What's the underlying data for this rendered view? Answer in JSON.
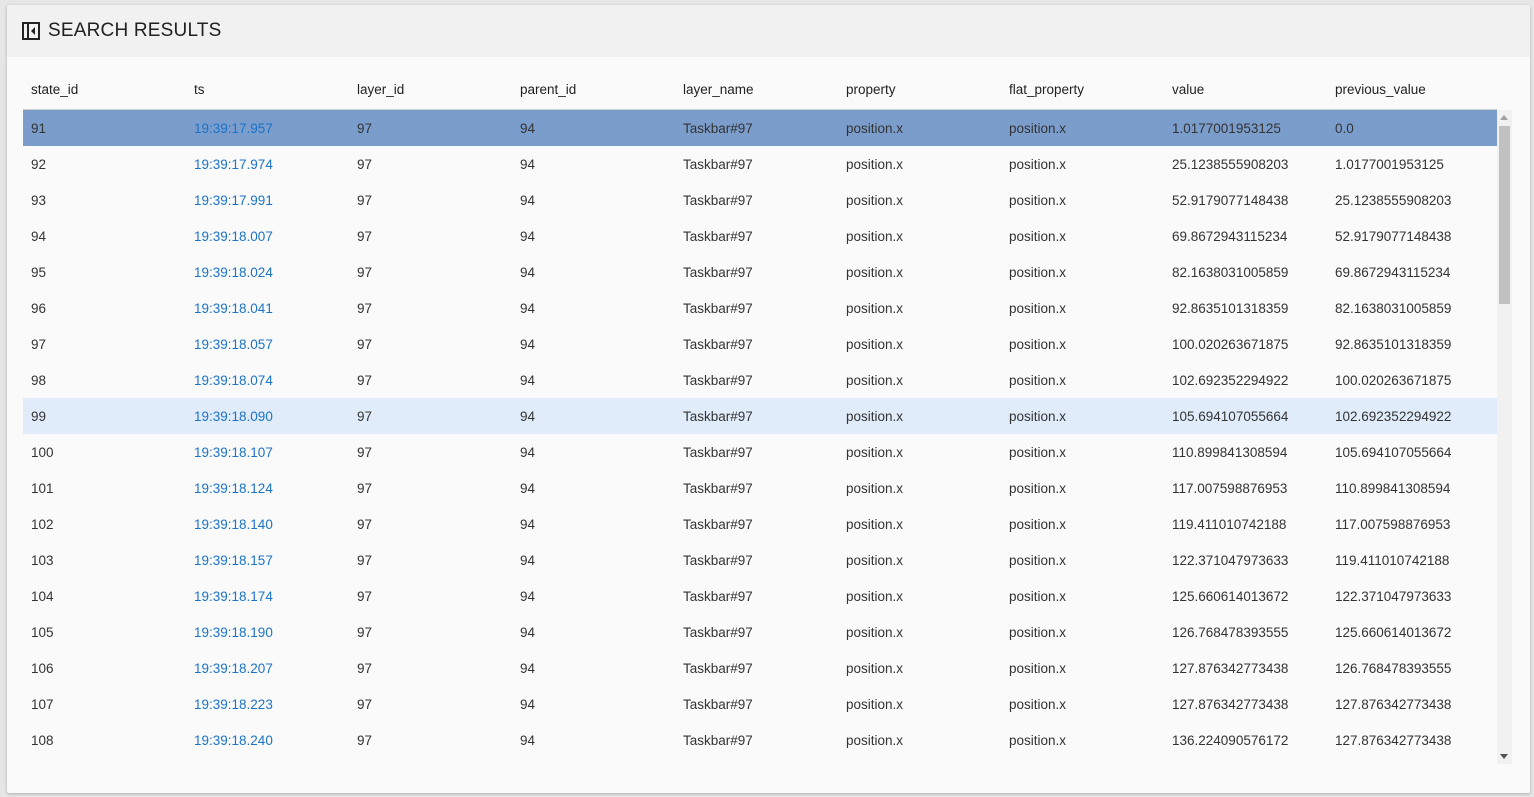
{
  "header": {
    "title": "SEARCH RESULTS",
    "icon": "collapse-panel-icon"
  },
  "colors": {
    "selected_row": "#7b9dcc",
    "hover_row": "#e1ecfb",
    "link": "#1a73c8"
  },
  "table": {
    "columns": [
      "state_id",
      "ts",
      "layer_id",
      "parent_id",
      "layer_name",
      "property",
      "flat_property",
      "value",
      "previous_value"
    ],
    "selected_index": 0,
    "hover_index": 8,
    "rows": [
      [
        "91",
        "19:39:17.957",
        "97",
        "94",
        "Taskbar#97",
        "position.x",
        "position.x",
        "1.0177001953125",
        "0.0"
      ],
      [
        "92",
        "19:39:17.974",
        "97",
        "94",
        "Taskbar#97",
        "position.x",
        "position.x",
        "25.1238555908203",
        "1.0177001953125"
      ],
      [
        "93",
        "19:39:17.991",
        "97",
        "94",
        "Taskbar#97",
        "position.x",
        "position.x",
        "52.9179077148438",
        "25.1238555908203"
      ],
      [
        "94",
        "19:39:18.007",
        "97",
        "94",
        "Taskbar#97",
        "position.x",
        "position.x",
        "69.8672943115234",
        "52.9179077148438"
      ],
      [
        "95",
        "19:39:18.024",
        "97",
        "94",
        "Taskbar#97",
        "position.x",
        "position.x",
        "82.1638031005859",
        "69.8672943115234"
      ],
      [
        "96",
        "19:39:18.041",
        "97",
        "94",
        "Taskbar#97",
        "position.x",
        "position.x",
        "92.8635101318359",
        "82.1638031005859"
      ],
      [
        "97",
        "19:39:18.057",
        "97",
        "94",
        "Taskbar#97",
        "position.x",
        "position.x",
        "100.020263671875",
        "92.8635101318359"
      ],
      [
        "98",
        "19:39:18.074",
        "97",
        "94",
        "Taskbar#97",
        "position.x",
        "position.x",
        "102.692352294922",
        "100.020263671875"
      ],
      [
        "99",
        "19:39:18.090",
        "97",
        "94",
        "Taskbar#97",
        "position.x",
        "position.x",
        "105.694107055664",
        "102.692352294922"
      ],
      [
        "100",
        "19:39:18.107",
        "97",
        "94",
        "Taskbar#97",
        "position.x",
        "position.x",
        "110.899841308594",
        "105.694107055664"
      ],
      [
        "101",
        "19:39:18.124",
        "97",
        "94",
        "Taskbar#97",
        "position.x",
        "position.x",
        "117.007598876953",
        "110.899841308594"
      ],
      [
        "102",
        "19:39:18.140",
        "97",
        "94",
        "Taskbar#97",
        "position.x",
        "position.x",
        "119.411010742188",
        "117.007598876953"
      ],
      [
        "103",
        "19:39:18.157",
        "97",
        "94",
        "Taskbar#97",
        "position.x",
        "position.x",
        "122.371047973633",
        "119.411010742188"
      ],
      [
        "104",
        "19:39:18.174",
        "97",
        "94",
        "Taskbar#97",
        "position.x",
        "position.x",
        "125.660614013672",
        "122.371047973633"
      ],
      [
        "105",
        "19:39:18.190",
        "97",
        "94",
        "Taskbar#97",
        "position.x",
        "position.x",
        "126.768478393555",
        "125.660614013672"
      ],
      [
        "106",
        "19:39:18.207",
        "97",
        "94",
        "Taskbar#97",
        "position.x",
        "position.x",
        "127.876342773438",
        "126.768478393555"
      ],
      [
        "107",
        "19:39:18.223",
        "97",
        "94",
        "Taskbar#97",
        "position.x",
        "position.x",
        "127.876342773438",
        "127.876342773438"
      ],
      [
        "108",
        "19:39:18.240",
        "97",
        "94",
        "Taskbar#97",
        "position.x",
        "position.x",
        "136.224090576172",
        "127.876342773438"
      ]
    ]
  }
}
